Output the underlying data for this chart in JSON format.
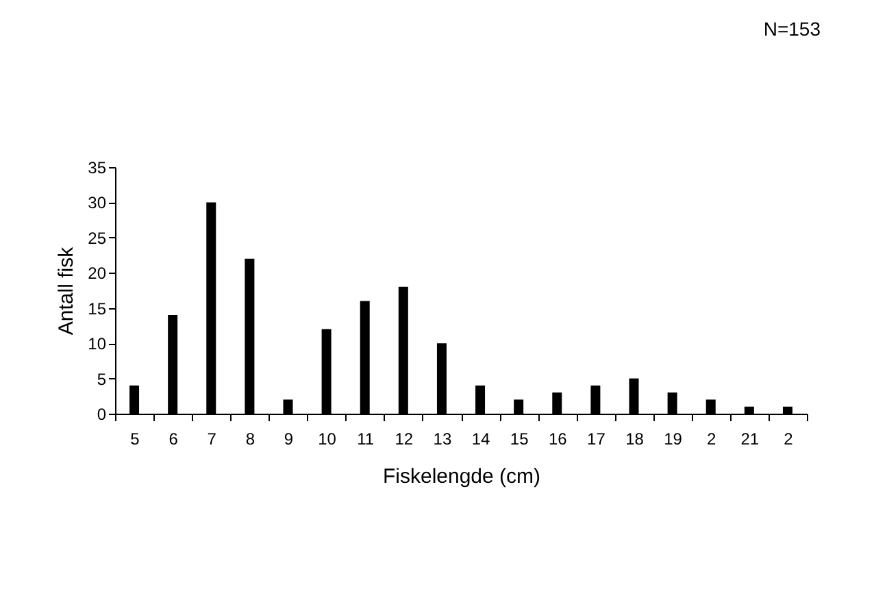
{
  "chart_data": {
    "type": "bar",
    "xlabel": "Fiskelengde (cm)",
    "ylabel": "Antall fisk",
    "annotations": [
      "N=153"
    ],
    "categories": [
      "5",
      "6",
      "7",
      "8",
      "9",
      "10",
      "11",
      "12",
      "13",
      "14",
      "15",
      "16",
      "17",
      "18",
      "19",
      "2",
      "21",
      "2"
    ],
    "values": [
      4,
      14,
      30,
      22,
      2,
      12,
      16,
      18,
      10,
      4,
      2,
      3,
      4,
      5,
      3,
      2,
      1,
      1
    ],
    "color": "#000000",
    "ylim": [
      0,
      35
    ],
    "yticks": [
      0,
      5,
      10,
      15,
      20,
      25,
      30,
      35
    ],
    "grid": false
  }
}
